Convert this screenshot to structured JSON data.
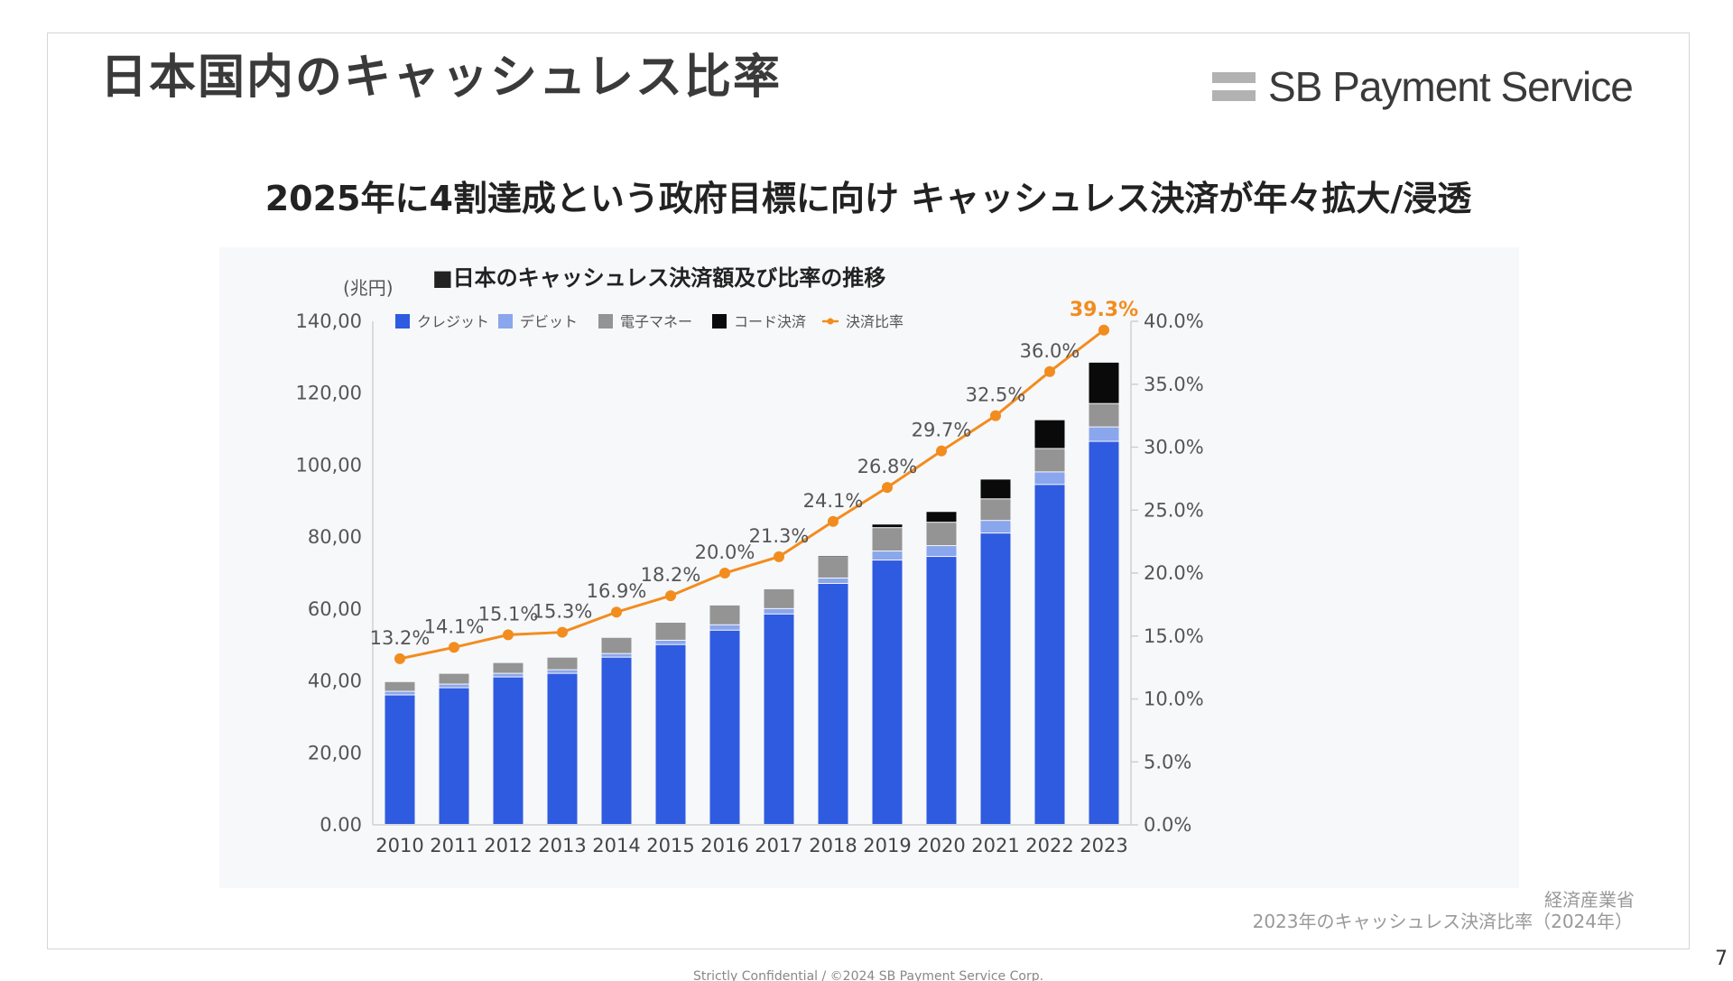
{
  "slide": {
    "title": "日本国内のキャッシュレス比率",
    "logo_text": "SB Payment Service",
    "subtitle": "2025年に4割達成という政府目標に向け キャッシュレス決済が年々拡大/浸透",
    "source_org": "経済産業省",
    "source_doc": "2023年のキャッシュレス決済比率（2024年）",
    "page_number": "7",
    "footer": "Strictly Confidential / ©2024 SB Payment Service Corp."
  },
  "chart_data": {
    "type": "bar",
    "stacked": true,
    "title": "■日本のキャッシュレス決済額及び比率の推移",
    "ylabel": "(兆円)",
    "categories": [
      "2010",
      "2011",
      "2012",
      "2013",
      "2014",
      "2015",
      "2016",
      "2017",
      "2018",
      "2019",
      "2020",
      "2021",
      "2022",
      "2023"
    ],
    "ylim": [
      0,
      140
    ],
    "yticks": [
      0,
      20,
      40,
      60,
      80,
      100,
      120,
      140
    ],
    "ytick_labels": [
      "0.00",
      "20,00",
      "40,00",
      "60,00",
      "80,00",
      "100,00",
      "120,00",
      "140,00"
    ],
    "y2lim": [
      0,
      40
    ],
    "y2ticks": [
      0,
      5,
      10,
      15,
      20,
      25,
      30,
      35,
      40
    ],
    "y2tick_labels": [
      "0.0%",
      "5.0%",
      "10.0%",
      "15.0%",
      "20.0%",
      "25.0%",
      "30.0%",
      "35.0%",
      "40.0%"
    ],
    "legend_position": "top-left",
    "grid": false,
    "series": [
      {
        "name": "クレジット",
        "color": "#2f5be0",
        "values": [
          36.0,
          38.0,
          41.0,
          42.0,
          46.5,
          50.0,
          54.0,
          58.5,
          67.0,
          73.5,
          74.5,
          81.0,
          94.5,
          106.5
        ]
      },
      {
        "name": "デビット",
        "color": "#8aa6ec",
        "values": [
          1.0,
          1.0,
          1.0,
          1.0,
          1.0,
          1.2,
          1.5,
          1.5,
          1.5,
          2.5,
          3.0,
          3.5,
          3.5,
          4.0
        ]
      },
      {
        "name": "電子マネー",
        "color": "#949494",
        "values": [
          2.7,
          3.0,
          3.0,
          3.5,
          4.5,
          5.0,
          5.5,
          5.5,
          6.0,
          6.5,
          6.5,
          6.0,
          6.5,
          6.5
        ]
      },
      {
        "name": "コード決済",
        "color": "#0a0a0a",
        "values": [
          0,
          0,
          0,
          0,
          0,
          0,
          0,
          0,
          0.2,
          1.0,
          3.0,
          5.5,
          8.0,
          11.5
        ]
      }
    ],
    "ratio_series": {
      "name": "決済比率",
      "color": "#f28c1e",
      "values": [
        13.2,
        14.1,
        15.1,
        15.3,
        16.9,
        18.2,
        20.0,
        21.3,
        24.1,
        26.8,
        29.7,
        32.5,
        36.0,
        39.3
      ],
      "labels": [
        "13.2%",
        "14.1%",
        "15.1%",
        "15.3%",
        "16.9%",
        "18.2%",
        "20.0%",
        "21.3%",
        "24.1%",
        "26.8%",
        "29.7%",
        "32.5%",
        "36.0%",
        "39.3%"
      ]
    }
  }
}
